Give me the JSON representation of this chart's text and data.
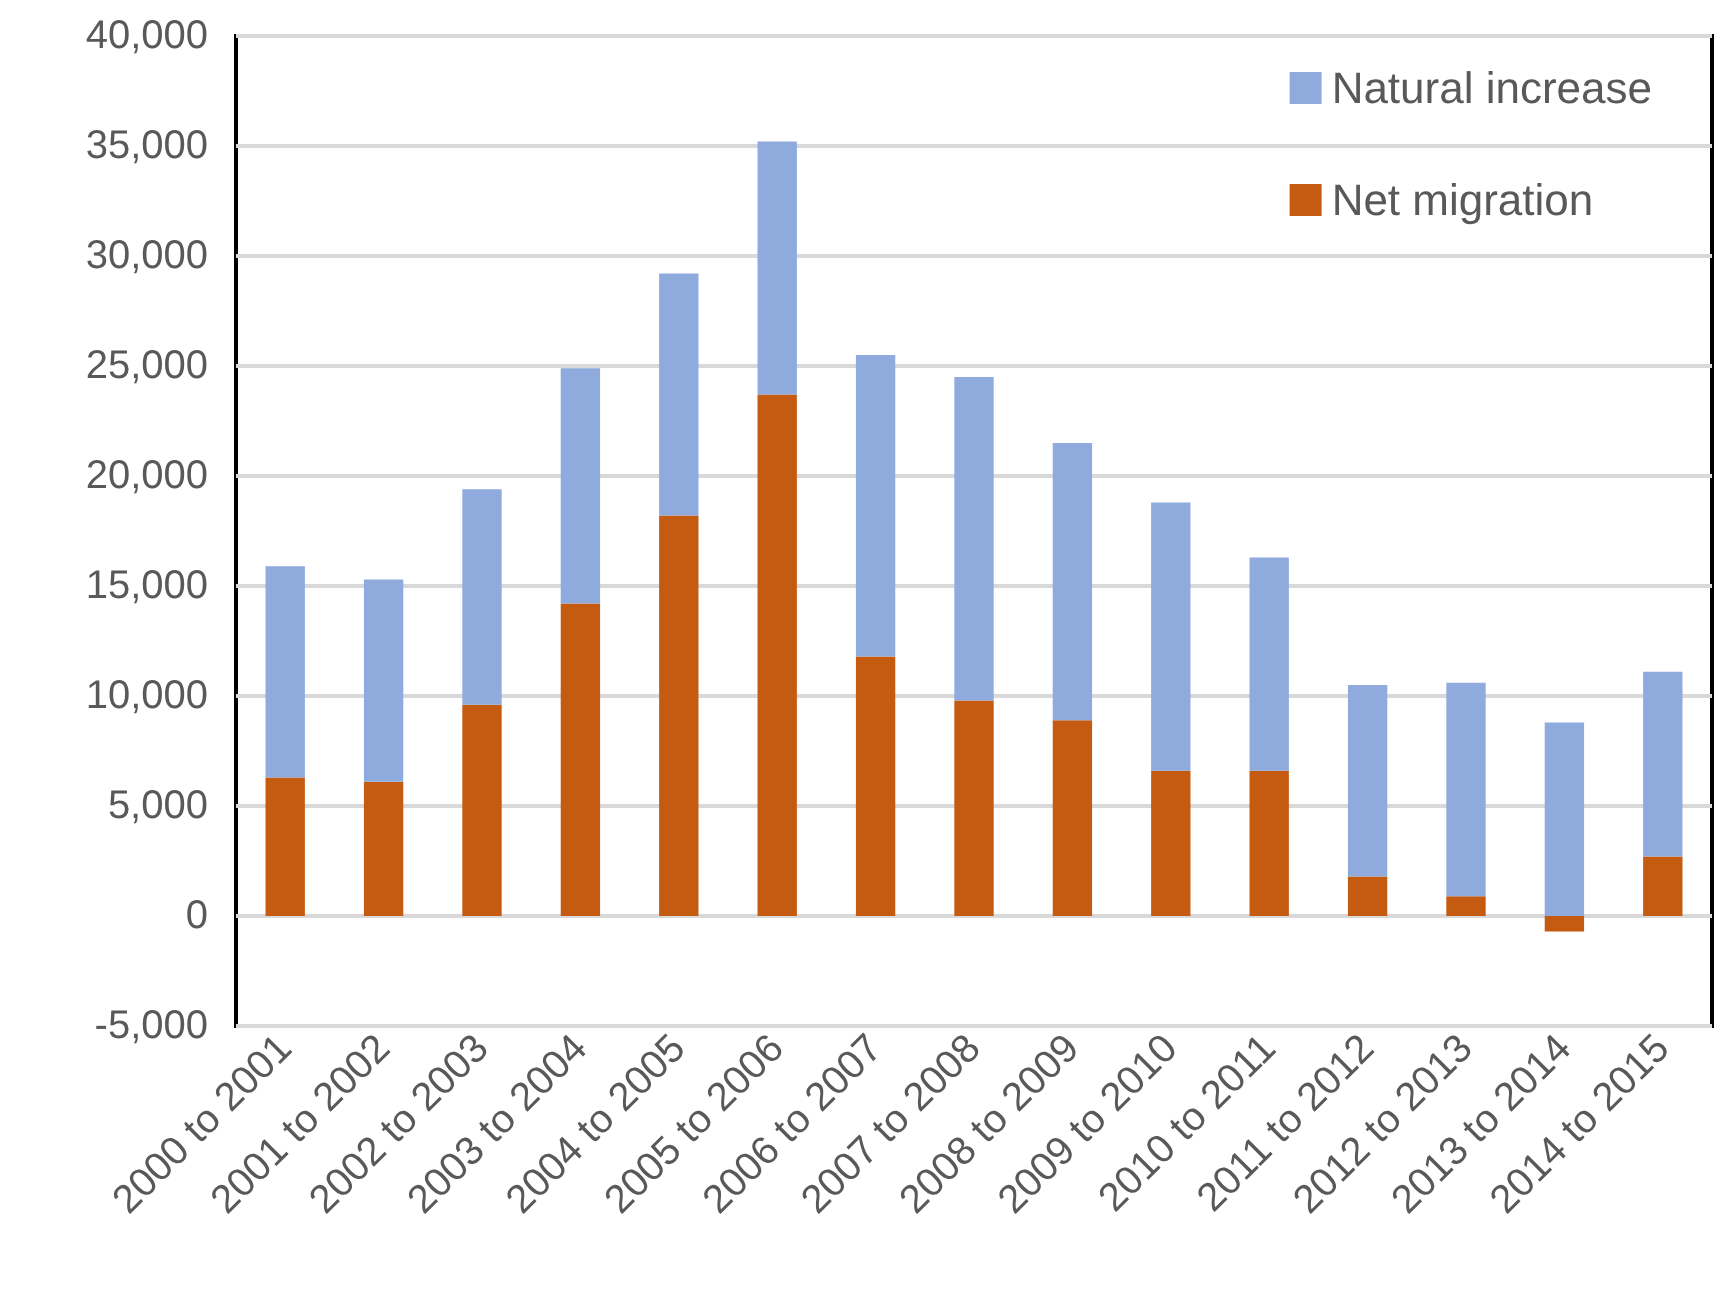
{
  "chart_data": {
    "type": "bar",
    "stacked": true,
    "categories": [
      "2000 to 2001",
      "2001 to 2002",
      "2002 to 2003",
      "2003 to 2004",
      "2004 to 2005",
      "2005 to 2006",
      "2006 to 2007",
      "2007 to 2008",
      "2008 to 2009",
      "2009 to 2010",
      "2010 to 2011",
      "2011 to 2012",
      "2012 to 2013",
      "2013 to 2014",
      "2014 to 2015"
    ],
    "series": [
      {
        "name": "Net migration",
        "color": "#c55a11",
        "values": [
          6300,
          6100,
          9600,
          14200,
          18200,
          23700,
          11800,
          9800,
          8900,
          6600,
          6600,
          1800,
          900,
          -700,
          2700
        ]
      },
      {
        "name": "Natural increase",
        "color": "#8faadc",
        "values": [
          9600,
          9200,
          9800,
          10700,
          11000,
          11500,
          13700,
          14700,
          12600,
          12200,
          9700,
          8700,
          9700,
          8800,
          8400
        ]
      }
    ],
    "ylim": [
      -5000,
      40000
    ],
    "yticks": [
      {
        "value": -5000,
        "label": "-5,000"
      },
      0,
      {
        "value": 5000,
        "label": "5,000"
      },
      {
        "value": 10000,
        "label": "10,000"
      },
      {
        "value": 15000,
        "label": "15,000"
      },
      {
        "value": 20000,
        "label": "20,000"
      },
      {
        "value": 25000,
        "label": "25,000"
      },
      {
        "value": 30000,
        "label": "30,000"
      },
      {
        "value": 35000,
        "label": "35,000"
      },
      {
        "value": 40000,
        "label": "40,000"
      }
    ],
    "grid": "y",
    "legend": "top right"
  }
}
